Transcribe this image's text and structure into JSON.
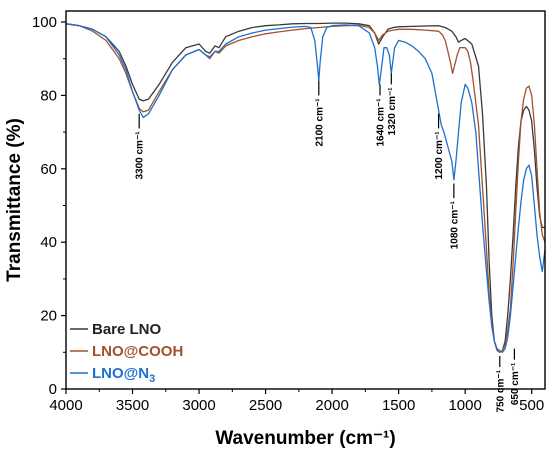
{
  "chart_data": {
    "type": "line",
    "xlabel": "Wavenumber (cm⁻¹)",
    "ylabel": "Transmittance (%)",
    "xlim": [
      4000,
      400
    ],
    "ylim": [
      0,
      103
    ],
    "x_reversed": true,
    "xticks": [
      4000,
      3500,
      3000,
      2500,
      2000,
      1500,
      1000,
      500
    ],
    "yticks": [
      0,
      20,
      40,
      60,
      80,
      100
    ],
    "grid": false,
    "legend_position": "bottom-left",
    "series": [
      {
        "name": "Bare LNO",
        "color": "#3a3a3a",
        "points": [
          [
            4000,
            99.5
          ],
          [
            3900,
            99
          ],
          [
            3800,
            98
          ],
          [
            3700,
            96
          ],
          [
            3600,
            92
          ],
          [
            3550,
            88
          ],
          [
            3500,
            83
          ],
          [
            3450,
            79
          ],
          [
            3420,
            78.5
          ],
          [
            3380,
            79
          ],
          [
            3300,
            83
          ],
          [
            3200,
            89
          ],
          [
            3100,
            93
          ],
          [
            3000,
            94
          ],
          [
            2950,
            92
          ],
          [
            2920,
            91.5
          ],
          [
            2880,
            93.5
          ],
          [
            2850,
            93
          ],
          [
            2800,
            96
          ],
          [
            2700,
            97.5
          ],
          [
            2600,
            98.5
          ],
          [
            2500,
            99
          ],
          [
            2400,
            99.2
          ],
          [
            2300,
            99.5
          ],
          [
            2200,
            99.6
          ],
          [
            2100,
            99.6
          ],
          [
            2000,
            99.7
          ],
          [
            1900,
            99.7
          ],
          [
            1800,
            99.5
          ],
          [
            1720,
            99
          ],
          [
            1680,
            97
          ],
          [
            1650,
            94
          ],
          [
            1620,
            96
          ],
          [
            1580,
            98
          ],
          [
            1540,
            98.5
          ],
          [
            1500,
            98.7
          ],
          [
            1400,
            98.8
          ],
          [
            1300,
            98.9
          ],
          [
            1200,
            99
          ],
          [
            1150,
            98.5
          ],
          [
            1100,
            97.5
          ],
          [
            1070,
            96
          ],
          [
            1050,
            94.5
          ],
          [
            1030,
            95
          ],
          [
            1000,
            95.5
          ],
          [
            950,
            94
          ],
          [
            900,
            88
          ],
          [
            870,
            75
          ],
          [
            840,
            55
          ],
          [
            820,
            35
          ],
          [
            800,
            20
          ],
          [
            780,
            13
          ],
          [
            760,
            10.5
          ],
          [
            740,
            10
          ],
          [
            720,
            10.5
          ],
          [
            700,
            13
          ],
          [
            680,
            20
          ],
          [
            660,
            30
          ],
          [
            640,
            42
          ],
          [
            620,
            55
          ],
          [
            600,
            66
          ],
          [
            580,
            73
          ],
          [
            560,
            76
          ],
          [
            540,
            77
          ],
          [
            520,
            76
          ],
          [
            500,
            73
          ],
          [
            480,
            65
          ],
          [
            460,
            55
          ],
          [
            440,
            47
          ],
          [
            420,
            44
          ],
          [
            400,
            44
          ]
        ]
      },
      {
        "name": "LNO@COOH",
        "color": "#a0522d",
        "points": [
          [
            4000,
            99.5
          ],
          [
            3900,
            99
          ],
          [
            3800,
            97.5
          ],
          [
            3700,
            95
          ],
          [
            3600,
            90
          ],
          [
            3550,
            86
          ],
          [
            3500,
            81
          ],
          [
            3450,
            76.5
          ],
          [
            3420,
            75.5
          ],
          [
            3380,
            76
          ],
          [
            3300,
            81
          ],
          [
            3200,
            87
          ],
          [
            3100,
            91
          ],
          [
            3000,
            92.5
          ],
          [
            2950,
            91
          ],
          [
            2920,
            90
          ],
          [
            2880,
            92
          ],
          [
            2850,
            91.5
          ],
          [
            2800,
            93.5
          ],
          [
            2700,
            95
          ],
          [
            2600,
            96
          ],
          [
            2500,
            96.8
          ],
          [
            2400,
            97.3
          ],
          [
            2300,
            97.8
          ],
          [
            2200,
            98.2
          ],
          [
            2100,
            98.5
          ],
          [
            2000,
            98.8
          ],
          [
            1900,
            99
          ],
          [
            1800,
            99.1
          ],
          [
            1720,
            98.5
          ],
          [
            1680,
            97
          ],
          [
            1650,
            95
          ],
          [
            1620,
            96.5
          ],
          [
            1580,
            97.5
          ],
          [
            1540,
            97.8
          ],
          [
            1500,
            98
          ],
          [
            1400,
            98
          ],
          [
            1300,
            97.8
          ],
          [
            1200,
            97.5
          ],
          [
            1170,
            96.5
          ],
          [
            1150,
            95
          ],
          [
            1130,
            92
          ],
          [
            1110,
            89
          ],
          [
            1095,
            86
          ],
          [
            1080,
            88
          ],
          [
            1060,
            91
          ],
          [
            1040,
            93
          ],
          [
            1000,
            93
          ],
          [
            980,
            92
          ],
          [
            960,
            89
          ],
          [
            940,
            84
          ],
          [
            900,
            72
          ],
          [
            870,
            55
          ],
          [
            840,
            38
          ],
          [
            820,
            26
          ],
          [
            800,
            18
          ],
          [
            780,
            13
          ],
          [
            760,
            10.5
          ],
          [
            740,
            10
          ],
          [
            720,
            10.5
          ],
          [
            700,
            12
          ],
          [
            680,
            16
          ],
          [
            660,
            22
          ],
          [
            640,
            34
          ],
          [
            620,
            48
          ],
          [
            600,
            62
          ],
          [
            580,
            73
          ],
          [
            560,
            79
          ],
          [
            540,
            82
          ],
          [
            520,
            82.5
          ],
          [
            500,
            80
          ],
          [
            480,
            72
          ],
          [
            460,
            60
          ],
          [
            440,
            48
          ],
          [
            420,
            42
          ],
          [
            400,
            40
          ]
        ]
      },
      {
        "name": "LNO@N₃",
        "color": "#1f6fd1",
        "points": [
          [
            4000,
            99.5
          ],
          [
            3900,
            99
          ],
          [
            3800,
            98
          ],
          [
            3700,
            96
          ],
          [
            3600,
            91
          ],
          [
            3550,
            87
          ],
          [
            3500,
            81
          ],
          [
            3450,
            76
          ],
          [
            3420,
            74
          ],
          [
            3380,
            75
          ],
          [
            3300,
            80
          ],
          [
            3200,
            87
          ],
          [
            3100,
            91
          ],
          [
            3000,
            92.5
          ],
          [
            2950,
            91
          ],
          [
            2920,
            90.5
          ],
          [
            2880,
            92
          ],
          [
            2850,
            92
          ],
          [
            2800,
            94
          ],
          [
            2700,
            96
          ],
          [
            2600,
            97
          ],
          [
            2500,
            97.8
          ],
          [
            2400,
            98.2
          ],
          [
            2300,
            98.6
          ],
          [
            2200,
            98.8
          ],
          [
            2160,
            98.5
          ],
          [
            2130,
            95
          ],
          [
            2110,
            88
          ],
          [
            2100,
            84
          ],
          [
            2090,
            89
          ],
          [
            2070,
            96
          ],
          [
            2040,
            98.5
          ],
          [
            2000,
            99
          ],
          [
            1900,
            99.2
          ],
          [
            1800,
            99
          ],
          [
            1720,
            97
          ],
          [
            1680,
            93
          ],
          [
            1660,
            88
          ],
          [
            1645,
            83
          ],
          [
            1630,
            87
          ],
          [
            1610,
            93
          ],
          [
            1590,
            93
          ],
          [
            1570,
            91
          ],
          [
            1555,
            86
          ],
          [
            1545,
            89
          ],
          [
            1530,
            93
          ],
          [
            1500,
            95
          ],
          [
            1450,
            94.5
          ],
          [
            1400,
            93.5
          ],
          [
            1350,
            92
          ],
          [
            1300,
            90
          ],
          [
            1250,
            86
          ],
          [
            1230,
            82
          ],
          [
            1200,
            76
          ],
          [
            1180,
            72
          ],
          [
            1160,
            70
          ],
          [
            1130,
            66
          ],
          [
            1100,
            62
          ],
          [
            1085,
            57
          ],
          [
            1070,
            62
          ],
          [
            1050,
            70
          ],
          [
            1030,
            78
          ],
          [
            1000,
            83
          ],
          [
            980,
            82
          ],
          [
            950,
            78
          ],
          [
            920,
            70
          ],
          [
            900,
            60
          ],
          [
            870,
            45
          ],
          [
            840,
            32
          ],
          [
            820,
            24
          ],
          [
            800,
            17
          ],
          [
            780,
            13
          ],
          [
            760,
            11
          ],
          [
            740,
            10.5
          ],
          [
            720,
            10
          ],
          [
            700,
            11
          ],
          [
            680,
            14
          ],
          [
            660,
            20
          ],
          [
            640,
            28
          ],
          [
            620,
            36
          ],
          [
            600,
            44
          ],
          [
            580,
            51
          ],
          [
            560,
            57
          ],
          [
            540,
            60
          ],
          [
            520,
            61
          ],
          [
            500,
            58
          ],
          [
            480,
            50
          ],
          [
            460,
            42
          ],
          [
            440,
            36
          ],
          [
            420,
            32
          ],
          [
            400,
            38
          ]
        ]
      }
    ],
    "annotations": [
      {
        "label": "3300 cm⁻¹",
        "x": 3450,
        "y": 70,
        "tick_from": 75,
        "tick_to": 71
      },
      {
        "label": "2100 cm⁻¹",
        "x": 2100,
        "y": 85,
        "tick_from": 84,
        "tick_to": 80
      },
      {
        "label": "1640 cm⁻¹",
        "x": 1640,
        "y": 84,
        "tick_from": 83,
        "tick_to": 80
      },
      {
        "label": "1320 cm⁻¹",
        "x": 1555,
        "y": 88,
        "tick_from": 86,
        "tick_to": 83
      },
      {
        "label": "1200 cm⁻¹",
        "x": 1200,
        "y": 75,
        "tick_from": 75,
        "tick_to": 71
      },
      {
        "label": "1080 cm⁻¹",
        "x": 1085,
        "y": 57,
        "tick_from": 56,
        "tick_to": 52
      },
      {
        "label": "750 cm⁻¹",
        "x": 740,
        "y": 9,
        "tick_from": 9,
        "tick_to": 6
      },
      {
        "label": "650 cm⁻¹",
        "x": 630,
        "y": 9,
        "tick_from": 11,
        "tick_to": 8
      }
    ]
  }
}
